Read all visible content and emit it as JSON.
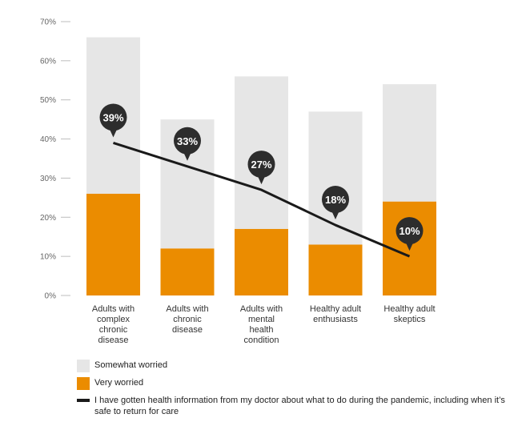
{
  "colors": {
    "somewhat": "#e6e6e6",
    "very": "#eb8c00",
    "line": "#1a1a1a",
    "marker": "#2d2d2d",
    "axis_text": "#666666",
    "category_text": "#333333"
  },
  "legend": {
    "somewhat_label": "Somewhat worried",
    "very_label": "Very worried",
    "line_label": "I have gotten health information from my doctor about what to do during the pandemic, including when it’s safe to return for care"
  },
  "chart_data": {
    "type": "bar",
    "stacked": true,
    "ylim": [
      0,
      70
    ],
    "y_ticks": [
      "0%",
      "10%",
      "20%",
      "30%",
      "40%",
      "50%",
      "60%",
      "70%"
    ],
    "categories": [
      [
        "Adults with",
        "complex",
        "chronic",
        "disease"
      ],
      [
        "Adults with",
        "chronic",
        "disease"
      ],
      [
        "Adults with",
        "mental",
        "health",
        "condition"
      ],
      [
        "Healthy adult",
        "enthusiasts"
      ],
      [
        "Healthy adult",
        "skeptics"
      ]
    ],
    "series": [
      {
        "name": "Very worried",
        "values": [
          26,
          12,
          17,
          13,
          24
        ]
      },
      {
        "name": "Somewhat worried",
        "values": [
          40,
          33,
          39,
          34,
          30
        ]
      }
    ],
    "line": {
      "values": [
        39,
        33,
        27,
        18,
        10
      ],
      "labels": [
        "39%",
        "33%",
        "27%",
        "18%",
        "10%"
      ]
    },
    "grid": false,
    "legend_position": "bottom-left"
  }
}
